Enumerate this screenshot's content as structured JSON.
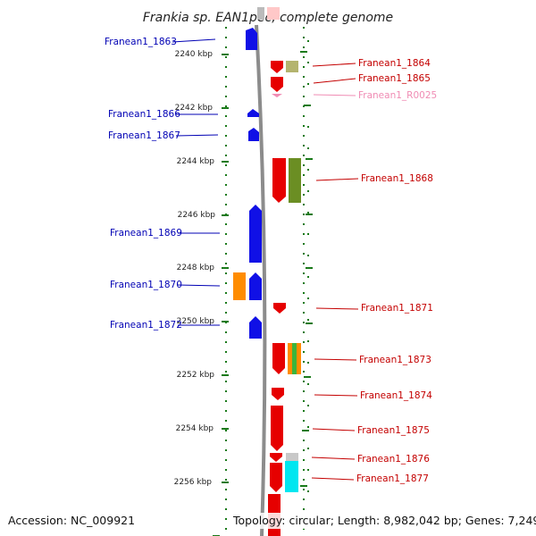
{
  "title": "Frankia sp. EAN1pec, complete genome",
  "footer": {
    "accession": "Accession: NC_009921",
    "topology": "Topology: circular; Length: 8,982,042 bp; Genes: 7,249"
  },
  "scale": {
    "ticks": [
      "2240 kbp",
      "2242 kbp",
      "2244 kbp",
      "2246 kbp",
      "2248 kbp",
      "2250 kbp",
      "2252 kbp",
      "2254 kbp",
      "2256 kbp"
    ]
  },
  "colors": {
    "reverse_strand": "#1010e6",
    "forward_strand": "#e60000",
    "backbone": "#8c8c8c",
    "ruler_dots": "#1a7a1a",
    "left_label": "#0000b4",
    "right_label": "#c40000",
    "rna_label": "#f08cb4"
  },
  "genes": {
    "left": [
      {
        "label": "Franean1_1863"
      },
      {
        "label": "Franean1_1866"
      },
      {
        "label": "Franean1_1867"
      },
      {
        "label": "Franean1_1869"
      },
      {
        "label": "Franean1_1870"
      },
      {
        "label": "Franean1_1872"
      }
    ],
    "right": [
      {
        "label": "Franean1_1864"
      },
      {
        "label": "Franean1_1865"
      },
      {
        "label": "Franean1_R0025"
      },
      {
        "label": "Franean1_1868"
      },
      {
        "label": "Franean1_1871"
      },
      {
        "label": "Franean1_1873"
      },
      {
        "label": "Franean1_1874"
      },
      {
        "label": "Franean1_1875"
      },
      {
        "label": "Franean1_1876"
      },
      {
        "label": "Franean1_1877"
      }
    ]
  }
}
